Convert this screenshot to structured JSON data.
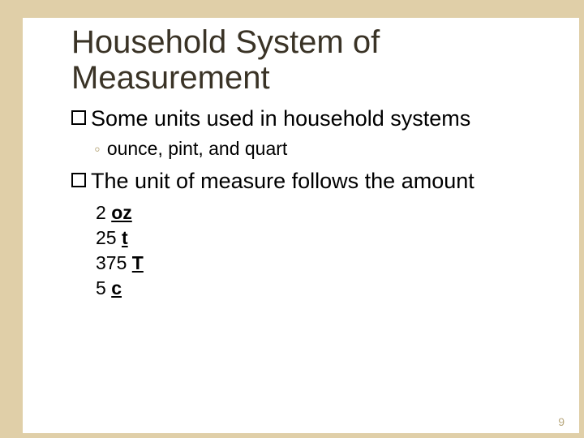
{
  "colors": {
    "border": "#e0cfa8",
    "title": "#3a3326",
    "body": "#000000",
    "sub_bullet": "#b9a97f",
    "pagenum": "#b9a97f",
    "background": "#ffffff"
  },
  "title": "Household System of Measurement",
  "bullets": [
    {
      "text": "Some units used in household systems",
      "sub": [
        "ounce, pint, and quart"
      ]
    },
    {
      "text": "The unit of measure follows the amount",
      "examples": [
        {
          "qty": "2",
          "unit": "oz"
        },
        {
          "qty": "25",
          "unit": "t"
        },
        {
          "qty": "375",
          "unit": "T"
        },
        {
          "qty": "5",
          "unit": "c"
        }
      ]
    }
  ],
  "page_number": "9"
}
